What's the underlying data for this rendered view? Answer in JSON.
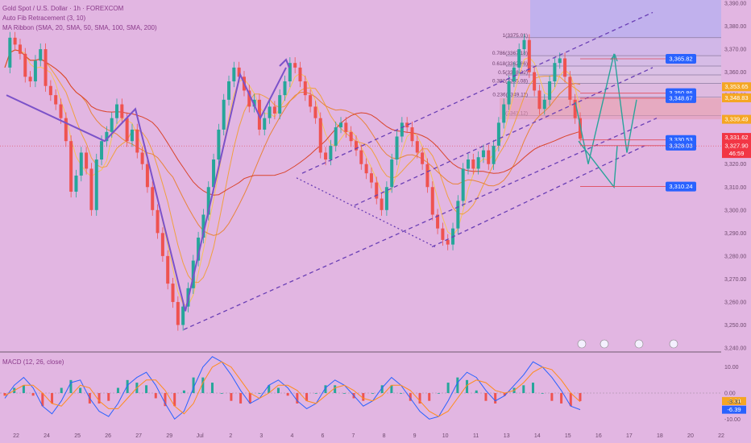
{
  "header": {
    "symbol": "Gold Spot / U.S. Dollar · 1h · FOREXCOM",
    "fib_indicator": "Auto Fib Retracement (3, 10)",
    "ma_indicator": "MA Ribbon (SMA, 20, SMA, 50, SMA, 100, SMA, 200)",
    "macd_indicator": "MACD (12, 26, close)"
  },
  "colors": {
    "background": "#e2b6e2",
    "up_candle": "#26a69a",
    "down_candle": "#ef5350",
    "pattern_line": "#7b52c9",
    "channel_line": "#6a3fb5",
    "forecast_line": "#2aa39a",
    "price_label_blue": "#2962ff",
    "price_label_red": "#f23645",
    "price_label_orange": "#f5a623"
  },
  "chart_data": [
    {
      "type": "candlestick",
      "title": "Gold Spot / U.S. Dollar · 1h · FOREXCOM",
      "x_ticks": [
        "22",
        "24",
        "25",
        "26",
        "27",
        "29",
        "Jul",
        "2",
        "3",
        "4",
        "6",
        "7",
        "8",
        "9",
        "10",
        "11",
        "13",
        "14",
        "15",
        "16",
        "17",
        "18",
        "20",
        "22"
      ],
      "y_ticks": [
        "3,390.00",
        "3,380.00",
        "3,370.00",
        "3,360.00",
        "3,350.00",
        "3,340.00",
        "3,330.00",
        "3,320.00",
        "3,310.00",
        "3,300.00",
        "3,290.00",
        "3,280.00",
        "3,270.00",
        "3,260.00",
        "3,250.00",
        "3,240.00"
      ],
      "ylim": [
        3240,
        3390
      ],
      "price_path": [
        3362,
        3375,
        3372,
        3368,
        3358,
        3356,
        3365,
        3370,
        3354,
        3350,
        3346,
        3340,
        3330,
        3308,
        3315,
        3325,
        3318,
        3300,
        3322,
        3330,
        3334,
        3340,
        3346,
        3340,
        3330,
        3335,
        3325,
        3320,
        3310,
        3300,
        3290,
        3280,
        3268,
        3260,
        3250,
        3258,
        3266,
        3278,
        3288,
        3298,
        3310,
        3322,
        3335,
        3348,
        3356,
        3362,
        3358,
        3352,
        3345,
        3348,
        3335,
        3340,
        3345,
        3342,
        3350,
        3356,
        3364,
        3362,
        3356,
        3350,
        3345,
        3340,
        3325,
        3322,
        3328,
        3336,
        3338,
        3334,
        3330,
        3326,
        3320,
        3316,
        3312,
        3305,
        3300,
        3310,
        3322,
        3332,
        3338,
        3336,
        3330,
        3325,
        3320,
        3310,
        3298,
        3292,
        3287,
        3285,
        3292,
        3304,
        3318,
        3322,
        3318,
        3323,
        3326,
        3320,
        3328,
        3338,
        3346,
        3356,
        3362,
        3370,
        3374,
        3360,
        3352,
        3344,
        3348,
        3356,
        3364,
        3366,
        3358,
        3348,
        3340,
        3331
      ],
      "fib_levels": [
        {
          "label": "1(3375.01)",
          "value": 3375.01
        },
        {
          "label": "0.786(3367.18)",
          "value": 3367.18
        },
        {
          "label": "0.618(3362.66)",
          "value": 3362.66
        },
        {
          "label": "0.5(3358.82)",
          "value": 3358.82
        },
        {
          "label": "0.382(3355.08)",
          "value": 3355.08
        },
        {
          "label": "0.236(3349.11)",
          "value": 3349.11
        },
        {
          "label": "0(3341.12)",
          "value": 3341.12
        }
      ],
      "zigzag": [
        [
          0.0,
          3350
        ],
        [
          1.5,
          3330
        ],
        [
          2.4,
          3344
        ],
        [
          3.7,
          3256
        ],
        [
          4.2,
          3359
        ],
        [
          4.6,
          3340
        ],
        [
          5.2,
          3362
        ]
      ],
      "forecast_path": [
        [
          0.62,
          3347
        ],
        [
          0.69,
          3320
        ],
        [
          0.76,
          3364
        ],
        [
          0.79,
          3325
        ],
        [
          0.83,
          3348
        ]
      ],
      "forecast_alt": [
        [
          0.62,
          3347
        ],
        [
          0.69,
          3328
        ],
        [
          0.74,
          3310
        ],
        [
          0.76,
          3328
        ]
      ],
      "price_labels": [
        {
          "text": "3,365.82",
          "value": 3365.82,
          "color": "blue"
        },
        {
          "text": "3,350.86",
          "value": 3350.86,
          "color": "blue"
        },
        {
          "text": "3,348.67",
          "value": 3348.67,
          "color": "blue"
        },
        {
          "text": "3,330.53",
          "value": 3330.53,
          "color": "blue"
        },
        {
          "text": "3,328.03",
          "value": 3328.03,
          "color": "blue"
        },
        {
          "text": "3,310.24",
          "value": 3310.24,
          "color": "blue"
        }
      ],
      "axis_tags": [
        {
          "text": "3,353.65",
          "value": 3353.65,
          "color": "orange"
        },
        {
          "text": "3,348.83",
          "value": 3348.83,
          "color": "orange"
        },
        {
          "text": "3,339.49",
          "value": 3339.49,
          "color": "orange"
        },
        {
          "text": "3,331.62",
          "value": 3331.62,
          "color": "red"
        },
        {
          "text": "3,327.90",
          "value": 3327.9,
          "color": "red"
        },
        {
          "text": "46:59",
          "value": 3324.6,
          "color": "red"
        }
      ]
    },
    {
      "type": "macd",
      "title": "MACD (12, 26, close)",
      "y_ticks": [
        "10.00",
        "0.00",
        "-10.00"
      ],
      "ylim": [
        -13,
        13
      ],
      "macd_line": [
        -2,
        3,
        6,
        2,
        -5,
        -8,
        -3,
        4,
        5,
        -2,
        -7,
        -9,
        -4,
        3,
        6,
        8,
        3,
        -4,
        -10,
        -7,
        2,
        10,
        14,
        12,
        7,
        1,
        -4,
        -2,
        3,
        5,
        2,
        -3,
        -6,
        -4,
        2,
        5,
        3,
        -1,
        -5,
        -3,
        2,
        6,
        3,
        -2,
        -7,
        -10,
        -9,
        -3,
        4,
        8,
        6,
        1,
        -3,
        -1,
        3,
        7,
        12,
        10,
        6,
        1,
        -5,
        -6.39
      ],
      "signal_line": [
        -1,
        1,
        3,
        3,
        0,
        -4,
        -5,
        -1,
        3,
        2,
        -3,
        -6,
        -6,
        -2,
        2,
        5,
        5,
        1,
        -5,
        -8,
        -4,
        4,
        10,
        12,
        10,
        5,
        0,
        -2,
        0,
        3,
        3,
        1,
        -3,
        -4,
        -1,
        2,
        3,
        1,
        -2,
        -3,
        -1,
        3,
        3,
        1,
        -3,
        -7,
        -9,
        -7,
        -2,
        3,
        5,
        4,
        1,
        0,
        1,
        4,
        8,
        10,
        9,
        5,
        0,
        -3.31
      ],
      "labels": [
        {
          "text": "-3.08",
          "value": -3.08,
          "color": "orange"
        },
        {
          "text": "-3.31",
          "value": -3.31,
          "color": "none"
        },
        {
          "text": "-6.39",
          "value": -6.39,
          "color": "blue"
        }
      ]
    }
  ]
}
